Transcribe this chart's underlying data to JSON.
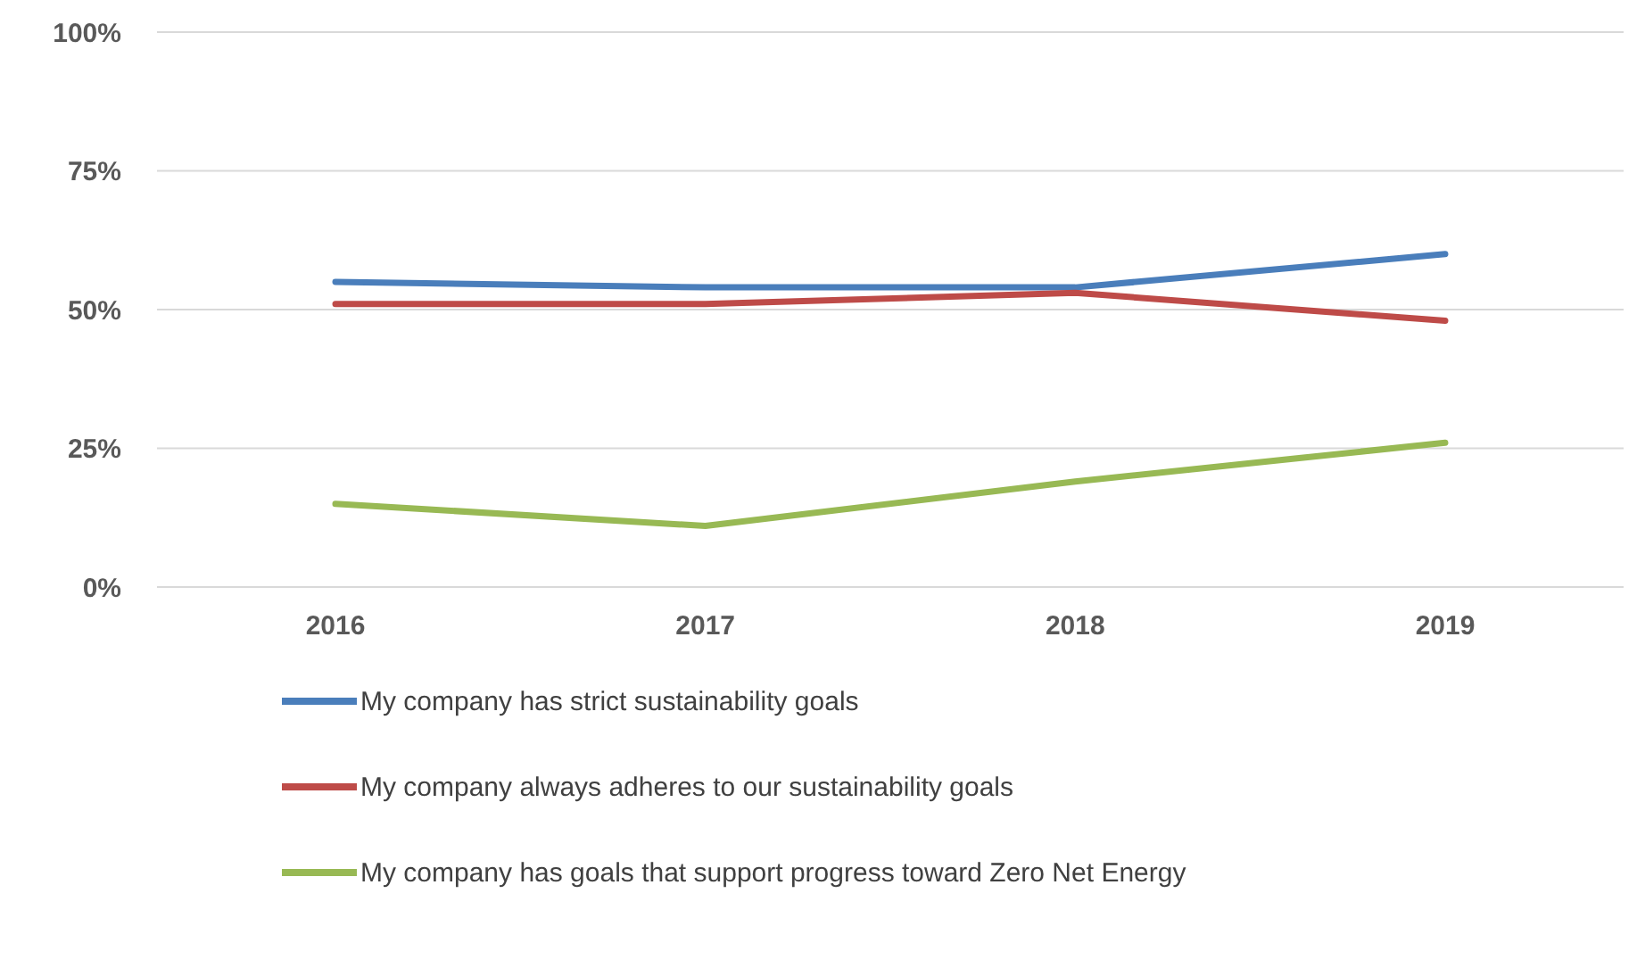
{
  "chart_data": {
    "type": "line",
    "categories": [
      "2016",
      "2017",
      "2018",
      "2019"
    ],
    "series": [
      {
        "name": "My company has strict sustainability goals",
        "color": "#4a7ebb",
        "values": [
          55,
          54,
          54,
          60
        ]
      },
      {
        "name": "My company always adheres to our sustainability goals",
        "color": "#be4b48",
        "values": [
          51,
          51,
          53,
          48
        ]
      },
      {
        "name": "My company has goals that support progress toward Zero Net Energy",
        "color": "#98b954",
        "values": [
          15,
          11,
          19,
          26
        ]
      }
    ],
    "ylim": [
      0,
      100
    ],
    "yticks": [
      {
        "value": 0,
        "label": "0%"
      },
      {
        "value": 25,
        "label": "25%"
      },
      {
        "value": 50,
        "label": "50%"
      },
      {
        "value": 75,
        "label": "75%"
      },
      {
        "value": 100,
        "label": "100%"
      }
    ],
    "grid": "y",
    "legend": "bottom",
    "marker": "none",
    "line_style": "solid"
  }
}
